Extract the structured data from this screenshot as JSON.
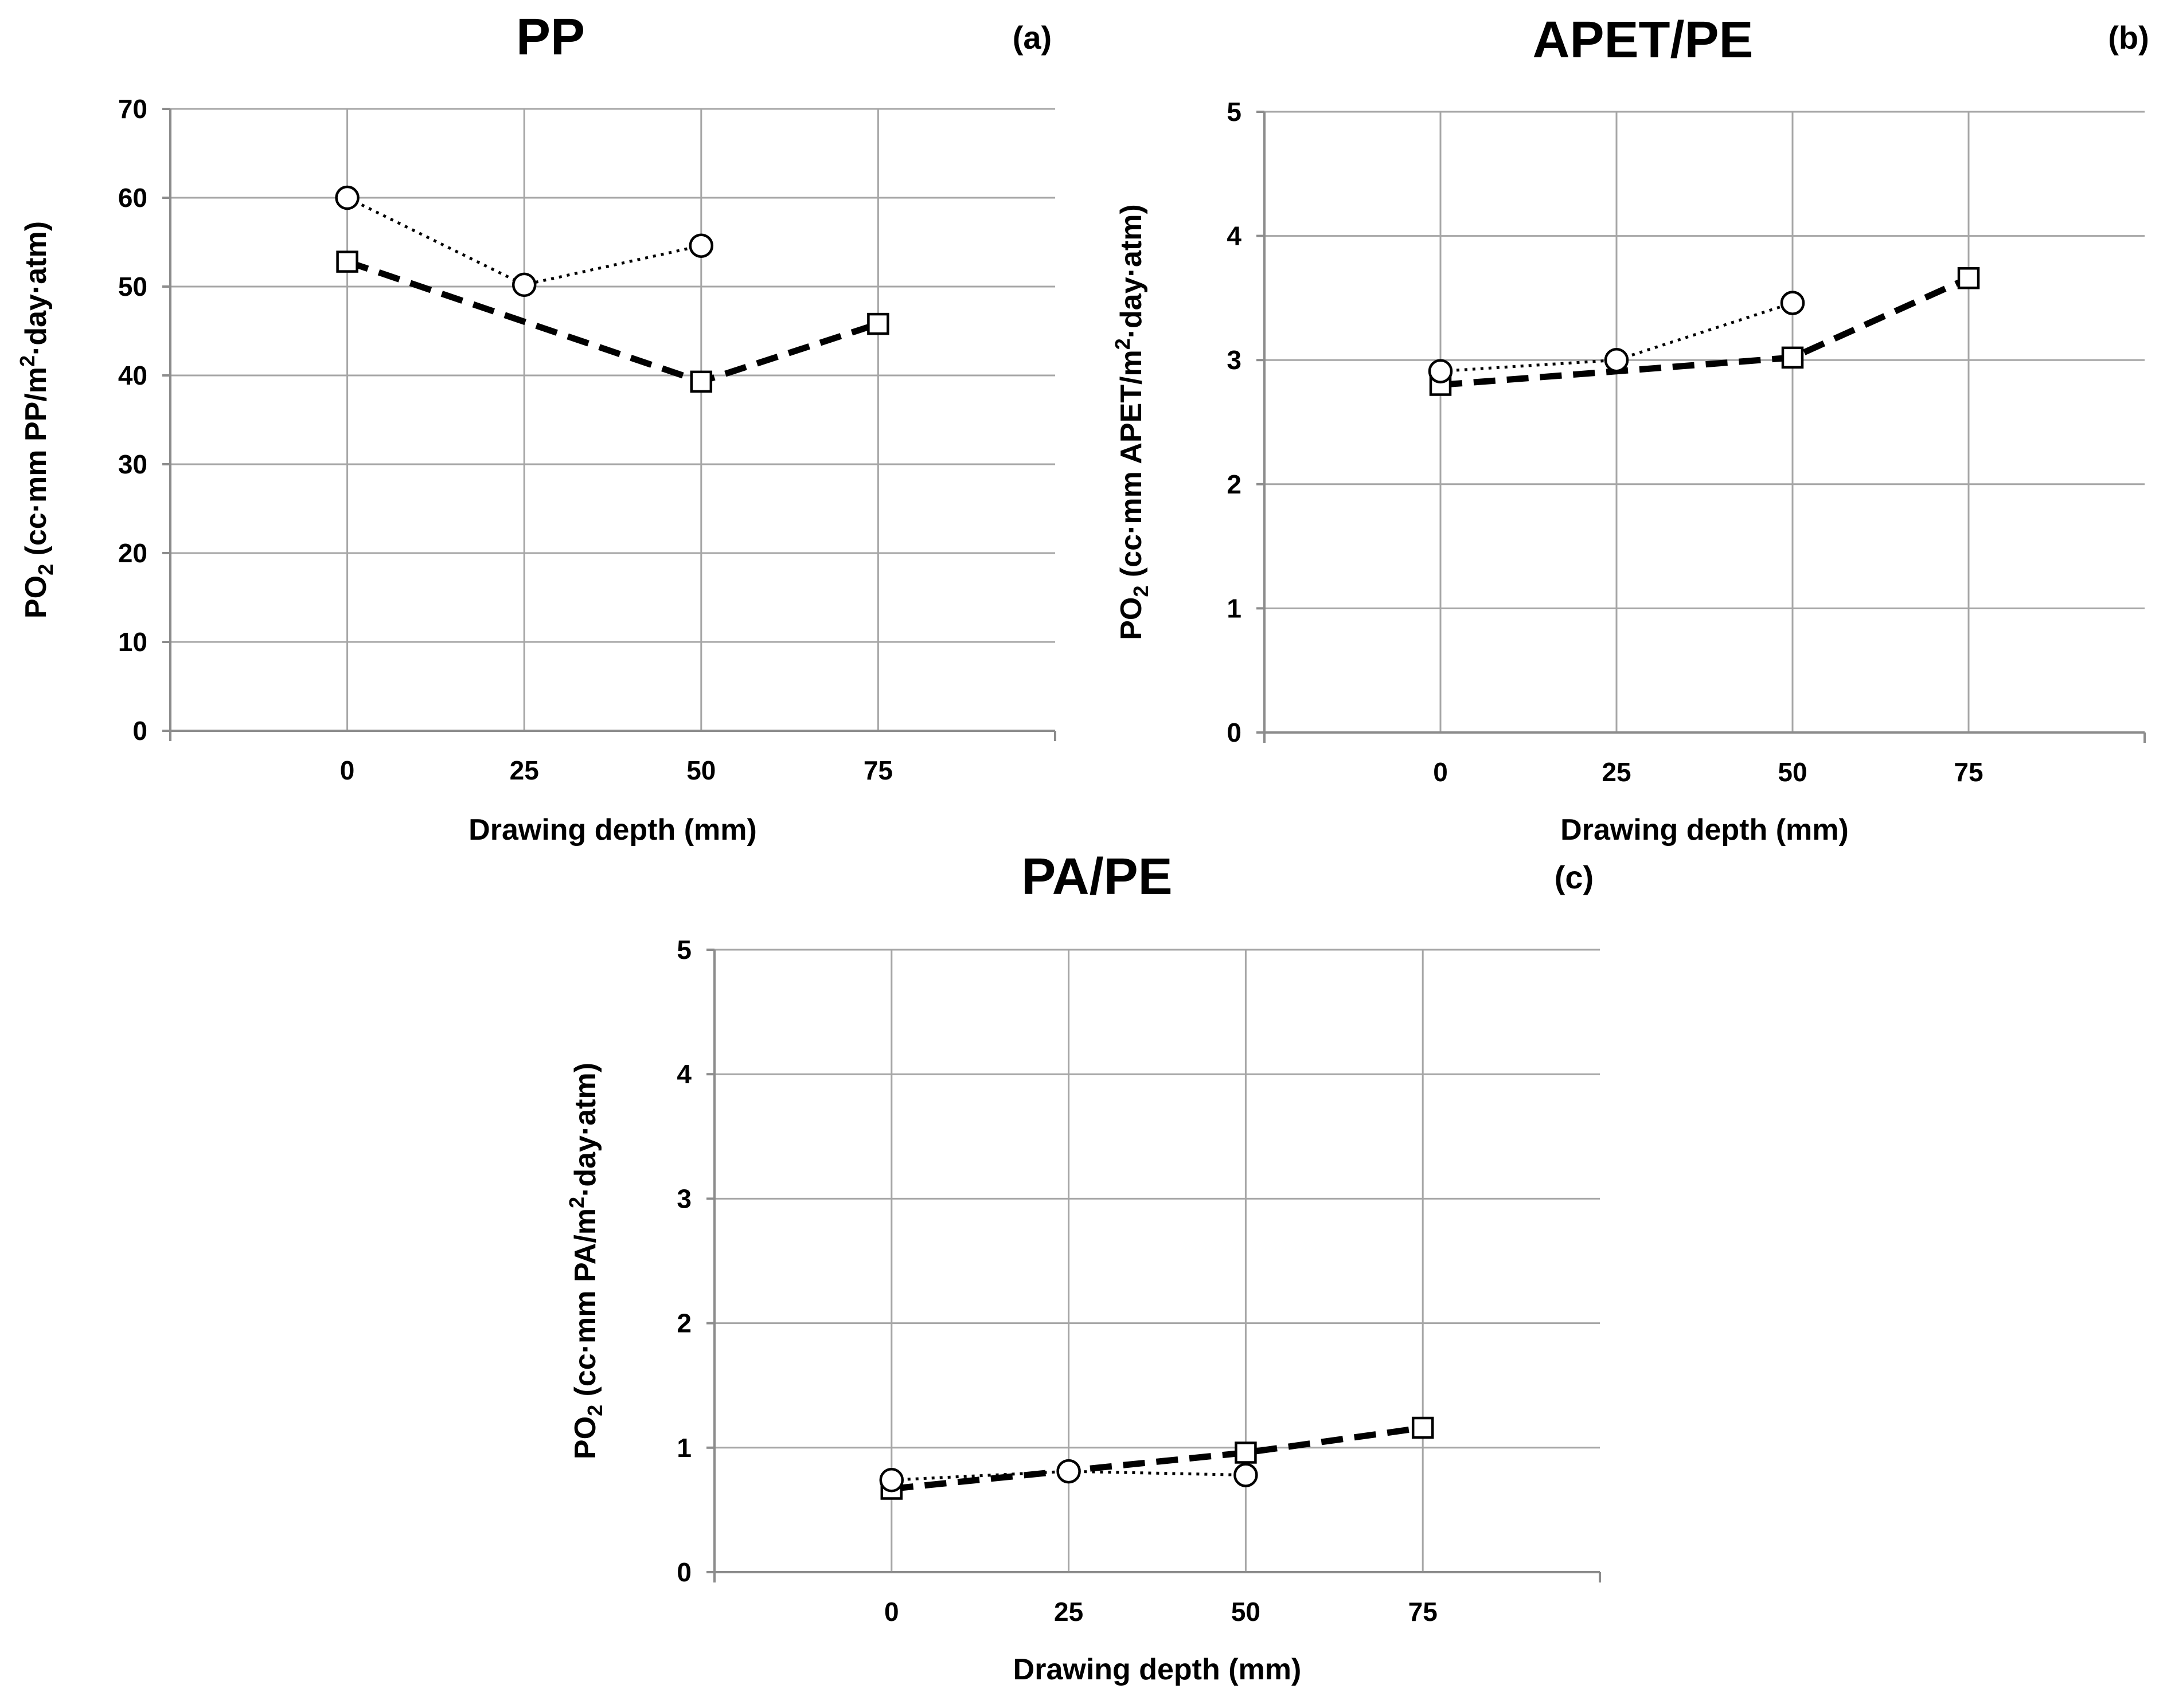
{
  "chart_data": [
    {
      "type": "line",
      "title": "PP",
      "panel_label": "(a)",
      "xlabel": "Drawing depth (mm)",
      "ylabel": {
        "prefix": "PO",
        "sub": "2",
        "mid": " (cc·mm PP/m",
        "sup": "2",
        "suffix": "·day·atm)"
      },
      "x_ticks": [
        "0",
        "25",
        "50",
        "75"
      ],
      "y_ticks": [
        "0",
        "10",
        "20",
        "30",
        "40",
        "50",
        "60",
        "70"
      ],
      "xlim": [
        -25,
        100
      ],
      "ylim": [
        0,
        70
      ],
      "grid": true,
      "series": [
        {
          "name": "dashed-square",
          "style": "dashed",
          "marker": "square",
          "x": [
            0,
            50,
            75
          ],
          "values": [
            52.8,
            39.3,
            45.8
          ]
        },
        {
          "name": "dotted-circle",
          "style": "dotted",
          "marker": "circle",
          "x": [
            0,
            25,
            50
          ],
          "values": [
            60.0,
            50.2,
            54.6
          ]
        }
      ]
    },
    {
      "type": "line",
      "title": "APET/PE",
      "panel_label": "(b)",
      "xlabel": "Drawing depth (mm)",
      "ylabel": {
        "prefix": "PO",
        "sub": "2",
        "mid": " (cc·mm APET/m",
        "sup": "2",
        "suffix": "·day·atm)"
      },
      "x_ticks": [
        "0",
        "25",
        "50",
        "75"
      ],
      "y_ticks": [
        "0",
        "1",
        "2",
        "3",
        "4",
        "5"
      ],
      "xlim": [
        -25,
        100
      ],
      "ylim": [
        0,
        5
      ],
      "grid": true,
      "series": [
        {
          "name": "dashed-square",
          "style": "dashed",
          "marker": "square",
          "x": [
            0,
            50,
            75
          ],
          "values": [
            2.8,
            3.02,
            3.66
          ]
        },
        {
          "name": "dotted-circle",
          "style": "dotted",
          "marker": "circle",
          "x": [
            0,
            25,
            50
          ],
          "values": [
            2.91,
            3.0,
            3.46
          ]
        }
      ]
    },
    {
      "type": "line",
      "title": "PA/PE",
      "panel_label": "(c)",
      "xlabel": "Drawing depth (mm)",
      "ylabel": {
        "prefix": "PO",
        "sub": "2",
        "mid": " (cc·mm PA/m",
        "sup": "2",
        "suffix": "·day·atm)"
      },
      "x_ticks": [
        "0",
        "25",
        "50",
        "75"
      ],
      "y_ticks": [
        "0",
        "1",
        "2",
        "3",
        "4",
        "5"
      ],
      "xlim": [
        -25,
        100
      ],
      "ylim": [
        0,
        5
      ],
      "grid": true,
      "series": [
        {
          "name": "dashed-square",
          "style": "dashed",
          "marker": "square",
          "x": [
            0,
            50,
            75
          ],
          "values": [
            0.67,
            0.96,
            1.16
          ]
        },
        {
          "name": "dotted-circle",
          "style": "dotted",
          "marker": "circle",
          "x": [
            0,
            25,
            50
          ],
          "values": [
            0.74,
            0.81,
            0.78
          ]
        }
      ]
    }
  ]
}
